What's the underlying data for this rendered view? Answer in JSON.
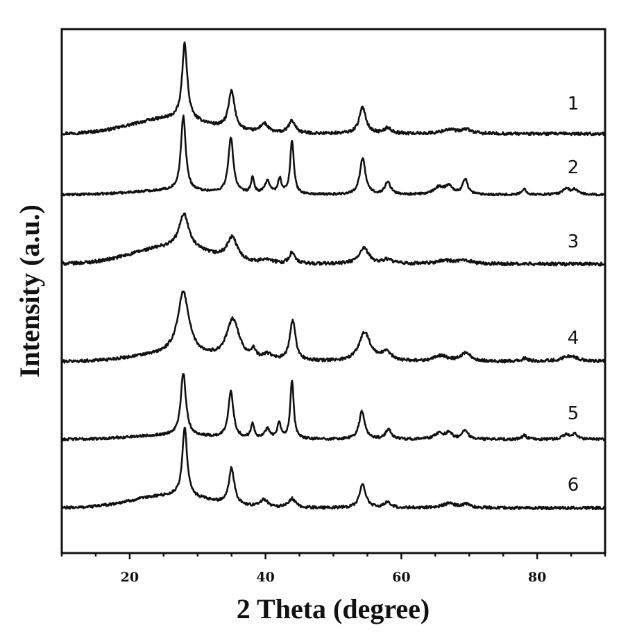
{
  "chart_data": {
    "type": "line",
    "xlabel": "2 Theta (degree)",
    "ylabel": "Intensity (a.u.)",
    "xlim": [
      10,
      90
    ],
    "x_ticks": [
      20,
      40,
      60,
      80
    ],
    "y_axis_ticks_labeled": false,
    "legend": "none",
    "colors": {
      "line": "#111111",
      "background": "#ffffff"
    },
    "series": [
      {
        "name": "1",
        "peaks": [
          {
            "x": 28.1,
            "h": 110,
            "w": 0.45
          },
          {
            "x": 35.0,
            "h": 55,
            "w": 0.55
          },
          {
            "x": 39.8,
            "h": 13,
            "w": 0.7
          },
          {
            "x": 43.9,
            "h": 18,
            "w": 0.6
          },
          {
            "x": 54.3,
            "h": 38,
            "w": 0.6
          },
          {
            "x": 58.0,
            "h": 8,
            "w": 0.6
          },
          {
            "x": 67.0,
            "h": 6,
            "w": 1.2
          },
          {
            "x": 69.6,
            "h": 6,
            "w": 0.8
          }
        ],
        "hump": 22,
        "noise": 2.2
      },
      {
        "name": "2",
        "peaks": [
          {
            "x": 27.9,
            "h": 108,
            "w": 0.42
          },
          {
            "x": 34.9,
            "h": 80,
            "w": 0.45
          },
          {
            "x": 38.1,
            "h": 22,
            "w": 0.3
          },
          {
            "x": 40.3,
            "h": 18,
            "w": 0.5
          },
          {
            "x": 42.1,
            "h": 22,
            "w": 0.3
          },
          {
            "x": 43.9,
            "h": 78,
            "w": 0.32
          },
          {
            "x": 54.3,
            "h": 52,
            "w": 0.5
          },
          {
            "x": 58.0,
            "h": 18,
            "w": 0.5
          },
          {
            "x": 65.5,
            "h": 10,
            "w": 0.8
          },
          {
            "x": 67.0,
            "h": 12,
            "w": 0.7
          },
          {
            "x": 69.4,
            "h": 22,
            "w": 0.45
          },
          {
            "x": 78.1,
            "h": 8,
            "w": 0.4
          },
          {
            "x": 84.3,
            "h": 9,
            "w": 0.6
          },
          {
            "x": 85.6,
            "h": 7,
            "w": 0.5
          }
        ],
        "hump": 6,
        "noise": 1.6
      },
      {
        "name": "3",
        "peaks": [
          {
            "x": 28.0,
            "h": 50,
            "w": 0.85
          },
          {
            "x": 35.1,
            "h": 32,
            "w": 0.9
          },
          {
            "x": 40.2,
            "h": 6,
            "w": 0.8
          },
          {
            "x": 43.9,
            "h": 16,
            "w": 0.5
          },
          {
            "x": 54.5,
            "h": 22,
            "w": 0.9
          },
          {
            "x": 58.0,
            "h": 6,
            "w": 0.8
          },
          {
            "x": 66.5,
            "h": 5,
            "w": 1.5
          },
          {
            "x": 69.5,
            "h": 5,
            "w": 1.0
          }
        ],
        "hump": 24,
        "noise": 2.4
      },
      {
        "name": "4",
        "peaks": [
          {
            "x": 27.9,
            "h": 90,
            "w": 1.0
          },
          {
            "x": 35.2,
            "h": 58,
            "w": 1.1
          },
          {
            "x": 38.2,
            "h": 12,
            "w": 0.4
          },
          {
            "x": 40.3,
            "h": 8,
            "w": 0.8
          },
          {
            "x": 44.0,
            "h": 58,
            "w": 0.5
          },
          {
            "x": 54.6,
            "h": 42,
            "w": 1.0
          },
          {
            "x": 57.8,
            "h": 12,
            "w": 0.9
          },
          {
            "x": 65.8,
            "h": 8,
            "w": 1.2
          },
          {
            "x": 69.5,
            "h": 12,
            "w": 0.9
          },
          {
            "x": 78.2,
            "h": 4,
            "w": 0.6
          },
          {
            "x": 84.8,
            "h": 8,
            "w": 1.5
          }
        ],
        "hump": 10,
        "noise": 2.2
      },
      {
        "name": "5",
        "peaks": [
          {
            "x": 27.9,
            "h": 90,
            "w": 0.45
          },
          {
            "x": 34.9,
            "h": 68,
            "w": 0.45
          },
          {
            "x": 38.1,
            "h": 22,
            "w": 0.3
          },
          {
            "x": 40.3,
            "h": 14,
            "w": 0.5
          },
          {
            "x": 42.0,
            "h": 22,
            "w": 0.3
          },
          {
            "x": 43.9,
            "h": 84,
            "w": 0.3
          },
          {
            "x": 54.2,
            "h": 40,
            "w": 0.5
          },
          {
            "x": 58.1,
            "h": 14,
            "w": 0.5
          },
          {
            "x": 65.5,
            "h": 8,
            "w": 0.8
          },
          {
            "x": 67.0,
            "h": 9,
            "w": 0.6
          },
          {
            "x": 69.4,
            "h": 14,
            "w": 0.45
          },
          {
            "x": 78.1,
            "h": 6,
            "w": 0.4
          },
          {
            "x": 84.3,
            "h": 7,
            "w": 0.6
          },
          {
            "x": 85.6,
            "h": 7,
            "w": 0.5
          }
        ],
        "hump": 6,
        "noise": 1.8
      },
      {
        "name": "6",
        "peaks": [
          {
            "x": 28.1,
            "h": 100,
            "w": 0.42
          },
          {
            "x": 35.0,
            "h": 52,
            "w": 0.5
          },
          {
            "x": 39.8,
            "h": 11,
            "w": 0.7
          },
          {
            "x": 43.9,
            "h": 13,
            "w": 0.6
          },
          {
            "x": 54.3,
            "h": 34,
            "w": 0.55
          },
          {
            "x": 58.0,
            "h": 8,
            "w": 0.6
          },
          {
            "x": 67.0,
            "h": 6,
            "w": 1.2
          },
          {
            "x": 69.6,
            "h": 5,
            "w": 0.8
          }
        ],
        "hump": 18,
        "noise": 2.0
      }
    ]
  }
}
